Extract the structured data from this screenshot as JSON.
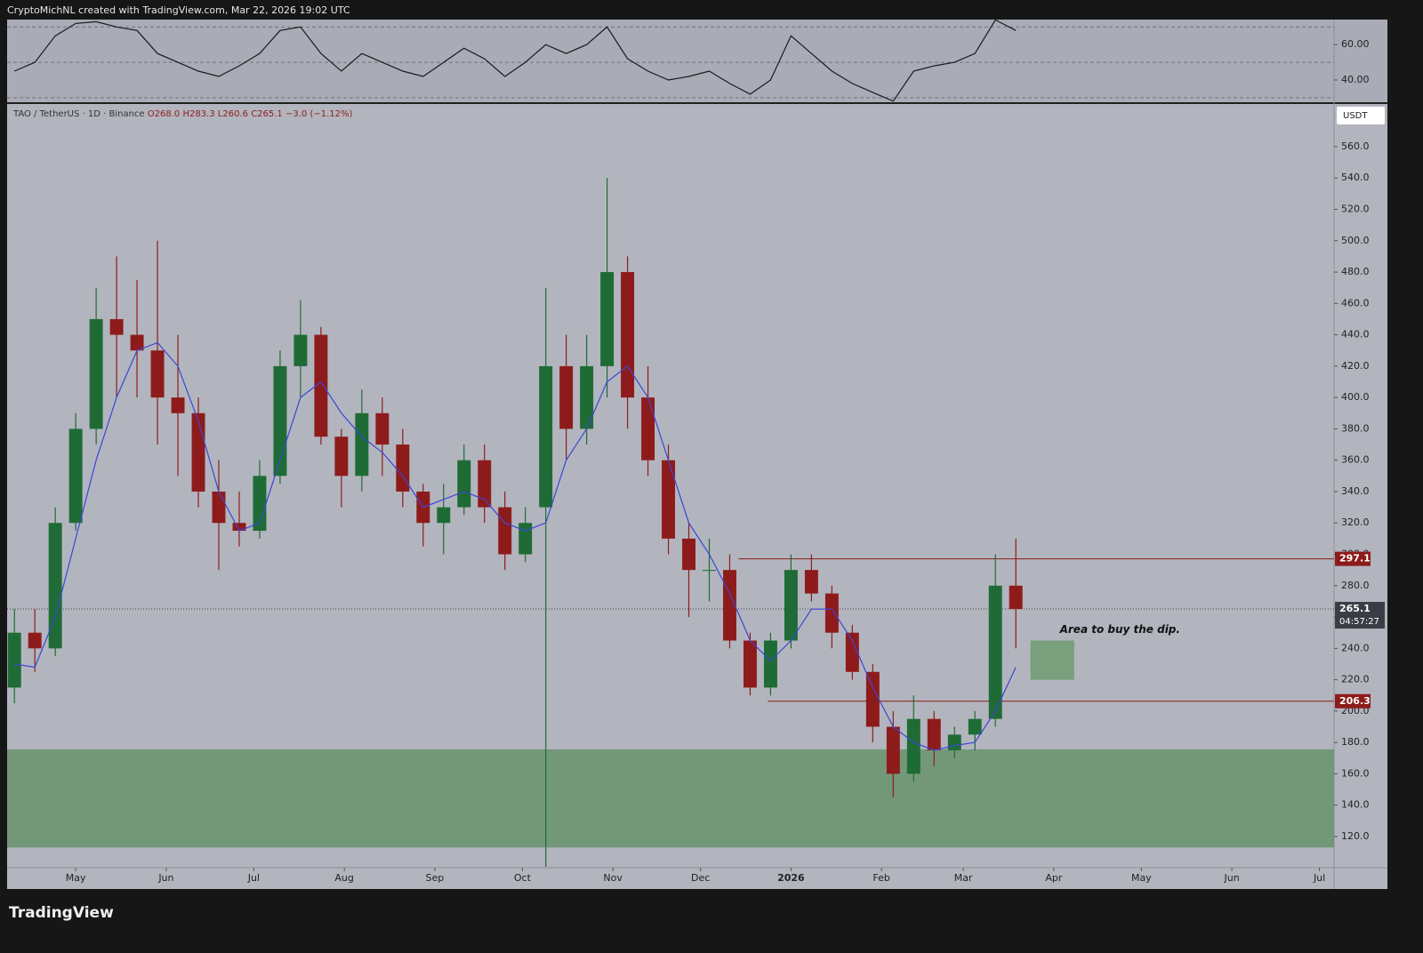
{
  "header": {
    "attribution": "CryptoMichNL created with TradingView.com, Mar 22, 2026 19:02 UTC"
  },
  "footer": {
    "brand": "TradingView"
  },
  "chart_data": [
    {
      "type": "line",
      "color": "#1a1a1a",
      "x": [
        -21,
        -14,
        -7,
        0,
        7,
        14,
        21,
        28,
        35,
        42,
        49,
        56,
        63,
        70,
        77,
        84,
        91,
        98,
        105,
        112,
        119,
        126,
        133,
        140,
        147,
        154,
        161,
        168,
        175,
        182,
        189,
        196,
        203,
        210,
        217,
        224,
        231,
        238,
        245,
        252,
        259,
        266,
        273,
        280,
        287,
        294,
        301,
        308,
        315,
        322
      ],
      "values": [
        45,
        50,
        65,
        72,
        73,
        70,
        68,
        55,
        50,
        45,
        42,
        48,
        55,
        68,
        70,
        55,
        45,
        55,
        50,
        45,
        42,
        50,
        58,
        52,
        42,
        50,
        60,
        55,
        60,
        70,
        52,
        45,
        40,
        42,
        45,
        38,
        32,
        40,
        65,
        55,
        45,
        38,
        33,
        28,
        45,
        48,
        50,
        55,
        74,
        68
      ],
      "xlim": [
        -23.5,
        431
      ],
      "ylim": [
        27.4,
        74.2
      ],
      "yticks": [
        {
          "value": 60,
          "label": "60.00"
        },
        {
          "value": 40,
          "label": "40.00"
        }
      ],
      "band_levels": [
        70,
        50,
        30
      ]
    },
    {
      "type": "candlestick",
      "currency": "USDT",
      "title": "TAO / TetherUS · 1D · Binance",
      "ohlc_label": [
        "O268.0",
        "H283.3",
        "L260.6",
        "C265.1",
        "−3.0 (−1.12%)"
      ],
      "up_color": "#1f6b35",
      "down_color": "#8e1b1b",
      "x": [
        -21,
        -14,
        -7,
        0,
        7,
        14,
        21,
        28,
        35,
        42,
        49,
        56,
        63,
        70,
        77,
        84,
        91,
        98,
        105,
        112,
        119,
        126,
        133,
        140,
        147,
        154,
        161,
        168,
        175,
        182,
        189,
        196,
        203,
        210,
        217,
        224,
        231,
        238,
        245,
        252,
        259,
        266,
        273,
        280,
        287,
        294,
        301,
        308,
        315,
        322
      ],
      "open": [
        215,
        250,
        240,
        320,
        380,
        450,
        440,
        430,
        400,
        390,
        340,
        320,
        315,
        350,
        420,
        440,
        375,
        350,
        390,
        370,
        340,
        320,
        330,
        360,
        330,
        300,
        330,
        420,
        380,
        420,
        480,
        400,
        360,
        310,
        290,
        290,
        245,
        215,
        245,
        290,
        275,
        250,
        225,
        190,
        160,
        195,
        175,
        185,
        195,
        280
      ],
      "high": [
        265,
        265,
        330,
        390,
        470,
        490,
        475,
        500,
        440,
        400,
        360,
        340,
        360,
        430,
        462,
        445,
        380,
        405,
        400,
        380,
        345,
        345,
        370,
        370,
        340,
        330,
        470,
        440,
        440,
        540,
        490,
        420,
        370,
        320,
        310,
        300,
        250,
        250,
        300,
        300,
        280,
        255,
        230,
        200,
        210,
        200,
        190,
        200,
        300,
        310
      ],
      "low": [
        205,
        225,
        235,
        315,
        370,
        400,
        400,
        370,
        350,
        330,
        290,
        305,
        310,
        345,
        400,
        370,
        330,
        340,
        350,
        330,
        305,
        300,
        325,
        320,
        290,
        295,
        100,
        360,
        370,
        400,
        380,
        350,
        300,
        260,
        270,
        240,
        210,
        210,
        240,
        270,
        240,
        220,
        180,
        145,
        155,
        165,
        170,
        175,
        190,
        240
      ],
      "close": [
        250,
        240,
        320,
        380,
        450,
        440,
        430,
        400,
        390,
        340,
        320,
        315,
        350,
        420,
        440,
        375,
        350,
        390,
        370,
        340,
        320,
        330,
        360,
        330,
        300,
        320,
        420,
        380,
        420,
        480,
        400,
        360,
        310,
        290,
        290,
        245,
        215,
        245,
        290,
        275,
        250,
        225,
        190,
        160,
        195,
        175,
        185,
        195,
        280,
        265.1
      ],
      "ma": {
        "color": "#3b46d6",
        "values": [
          230,
          228,
          260,
          310,
          360,
          400,
          430,
          435,
          420,
          385,
          340,
          315,
          320,
          360,
          400,
          410,
          390,
          375,
          365,
          350,
          330,
          335,
          340,
          335,
          320,
          315,
          320,
          360,
          380,
          410,
          420,
          400,
          360,
          320,
          300,
          275,
          245,
          232,
          245,
          265,
          265,
          245,
          215,
          190,
          180,
          175,
          178,
          180,
          200,
          228
        ]
      },
      "xlim": [
        -23.5,
        431
      ],
      "ylim": [
        100.7,
        587.2
      ],
      "xticks": [
        {
          "value": 0,
          "label": "May"
        },
        {
          "value": 31,
          "label": "Jun"
        },
        {
          "value": 61,
          "label": "Jul"
        },
        {
          "value": 92,
          "label": "Aug"
        },
        {
          "value": 123,
          "label": "Sep"
        },
        {
          "value": 153,
          "label": "Oct"
        },
        {
          "value": 184,
          "label": "Nov"
        },
        {
          "value": 214,
          "label": "Dec"
        },
        {
          "value": 245,
          "label": "2026"
        },
        {
          "value": 276,
          "label": "Feb"
        },
        {
          "value": 304,
          "label": "Mar"
        },
        {
          "value": 335,
          "label": "Apr"
        },
        {
          "value": 365,
          "label": "May"
        },
        {
          "value": 396,
          "label": "Jun"
        },
        {
          "value": 426,
          "label": "Jul"
        }
      ],
      "yticks": [
        {
          "value": 120,
          "label": "120.0"
        },
        {
          "value": 140,
          "label": "140.0"
        },
        {
          "value": 160,
          "label": "160.0"
        },
        {
          "value": 180,
          "label": "180.0"
        },
        {
          "value": 200,
          "label": "200.0"
        },
        {
          "value": 220,
          "label": "220.0"
        },
        {
          "value": 240,
          "label": "240.0"
        },
        {
          "value": 260,
          "label": "260.0"
        },
        {
          "value": 280,
          "label": "280.0"
        },
        {
          "value": 300,
          "label": "300.0"
        },
        {
          "value": 320,
          "label": "320.0"
        },
        {
          "value": 340,
          "label": "340.0"
        },
        {
          "value": 360,
          "label": "360.0"
        },
        {
          "value": 380,
          "label": "380.0"
        },
        {
          "value": 400,
          "label": "400.0"
        },
        {
          "value": 420,
          "label": "420.0"
        },
        {
          "value": 440,
          "label": "440.0"
        },
        {
          "value": 460,
          "label": "460.0"
        },
        {
          "value": 480,
          "label": "480.0"
        },
        {
          "value": 500,
          "label": "500.0"
        },
        {
          "value": 520,
          "label": "520.0"
        },
        {
          "value": 540,
          "label": "540.0"
        },
        {
          "value": 560,
          "label": "560.0"
        }
      ],
      "price_lines": [
        {
          "value": 297.1,
          "from": 227,
          "color": "#8e1b1b"
        },
        {
          "value": 206.3,
          "from": 237,
          "color": "#8e1b1b"
        }
      ],
      "last_price": {
        "value": 265.1,
        "countdown": "04:57:27"
      },
      "zones": [
        {
          "x": [
            -23.5,
            431
          ],
          "y": [
            113,
            175.6
          ],
          "color": "#5e8f62"
        }
      ],
      "annotation": {
        "text": "Area to buy the dip.",
        "x": [
          327,
          342
        ],
        "y": [
          220,
          245
        ],
        "color": "#6f9b72"
      }
    }
  ]
}
